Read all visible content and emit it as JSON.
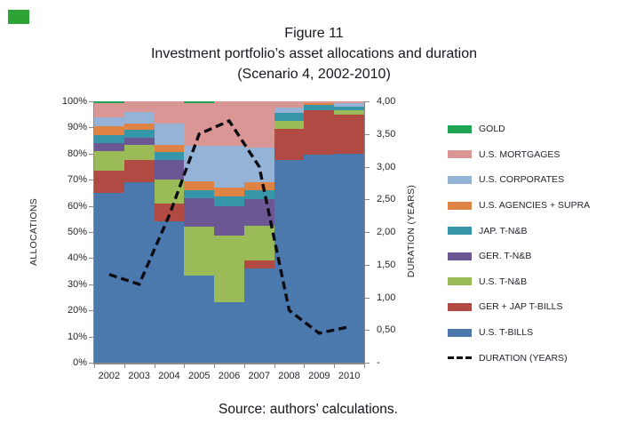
{
  "page": {
    "title_lines": [
      "Figure 11",
      "Investment portfolio’s asset allocations and duration",
      "(Scenario 4, 2002-2010)"
    ],
    "source": "Source: authors’ calculations."
  },
  "decoration": {
    "corner_box_color": "#2EA437"
  },
  "chart_data": {
    "type": "stacked-bar-with-line",
    "categories": [
      "2002",
      "2003",
      "2004",
      "2005",
      "2006",
      "2007",
      "2008",
      "2009",
      "2010"
    ],
    "series": [
      {
        "name": "U.S. T-BILLS",
        "color": "#4B79AE",
        "values": [
          65,
          69,
          54,
          33.5,
          23,
          36,
          77.5,
          79.5,
          80
        ]
      },
      {
        "name": "GER + JAP T-BILLS",
        "color": "#B24A44",
        "values": [
          8.5,
          8.5,
          7,
          0,
          0,
          3,
          12,
          17,
          15
        ]
      },
      {
        "name": "U.S. T-N&B",
        "color": "#9BBB59",
        "values": [
          7.5,
          6,
          9,
          18.5,
          25.5,
          13.5,
          3,
          0,
          1.5
        ]
      },
      {
        "name": "GER. T-N&B",
        "color": "#6C5795",
        "values": [
          3,
          2.5,
          7.5,
          11,
          11.5,
          10,
          0,
          0,
          0
        ]
      },
      {
        "name": "JAP. T-N&B",
        "color": "#3696A7",
        "values": [
          3,
          3,
          3,
          3,
          3.5,
          3.5,
          3,
          2,
          1.5
        ]
      },
      {
        "name": "U.S. AGENCIES + SUPRA",
        "color": "#DE8344",
        "values": [
          3.5,
          2.5,
          3,
          3.5,
          3.5,
          3,
          0,
          1,
          0
        ]
      },
      {
        "name": "U.S. CORPORATES",
        "color": "#95B3D7",
        "values": [
          3.5,
          4.5,
          8,
          13.5,
          16,
          13.5,
          2,
          0,
          1.5
        ]
      },
      {
        "name": "U.S. MORTGAGES",
        "color": "#D99694",
        "values": [
          5.5,
          4,
          8.5,
          16.5,
          17,
          17.5,
          2.5,
          0.5,
          0.5
        ]
      },
      {
        "name": "GOLD",
        "color": "#1FA453",
        "values": [
          0.5,
          0,
          0,
          0.5,
          0,
          0,
          0,
          0,
          0
        ]
      }
    ],
    "line": {
      "name": "DURATION (YEARS)",
      "color": "#0C0C12",
      "values": [
        1.35,
        1.2,
        2.25,
        3.5,
        3.7,
        3.0,
        0.8,
        0.45,
        0.55
      ]
    },
    "left_axis": {
      "title": "ALLOCATIONS",
      "min": 0,
      "max": 100,
      "ticks": [
        "100%",
        "90%",
        "80%",
        "70%",
        "60%",
        "50%",
        "40%",
        "30%",
        "20%",
        "10%",
        "0%"
      ]
    },
    "right_axis": {
      "title": "DURATION (YEARS)",
      "min": 0,
      "max": 4,
      "ticks": [
        "4,00",
        "3,50",
        "3,00",
        "2,50",
        "2,00",
        "1,50",
        "1,00",
        "0,50",
        "-"
      ]
    },
    "legend": [
      {
        "label": "GOLD",
        "color": "#1FA453",
        "dash": false
      },
      {
        "label": "U.S. MORTGAGES",
        "color": "#D99694",
        "dash": false
      },
      {
        "label": "U.S. CORPORATES",
        "color": "#95B3D7",
        "dash": false
      },
      {
        "label": "U.S. AGENCIES + SUPRA",
        "color": "#DE8344",
        "dash": false
      },
      {
        "label": "JAP. T-N&B",
        "color": "#3696A7",
        "dash": false
      },
      {
        "label": "GER. T-N&B",
        "color": "#6C5795",
        "dash": false
      },
      {
        "label": "U.S. T-N&B",
        "color": "#9BBB59",
        "dash": false
      },
      {
        "label": "GER + JAP T-BILLS",
        "color": "#B24A44",
        "dash": false
      },
      {
        "label": "U.S. T-BILLS",
        "color": "#4B79AE",
        "dash": false
      },
      {
        "label": "DURATION (YEARS)",
        "color": "#0C0C12",
        "dash": true
      }
    ]
  }
}
